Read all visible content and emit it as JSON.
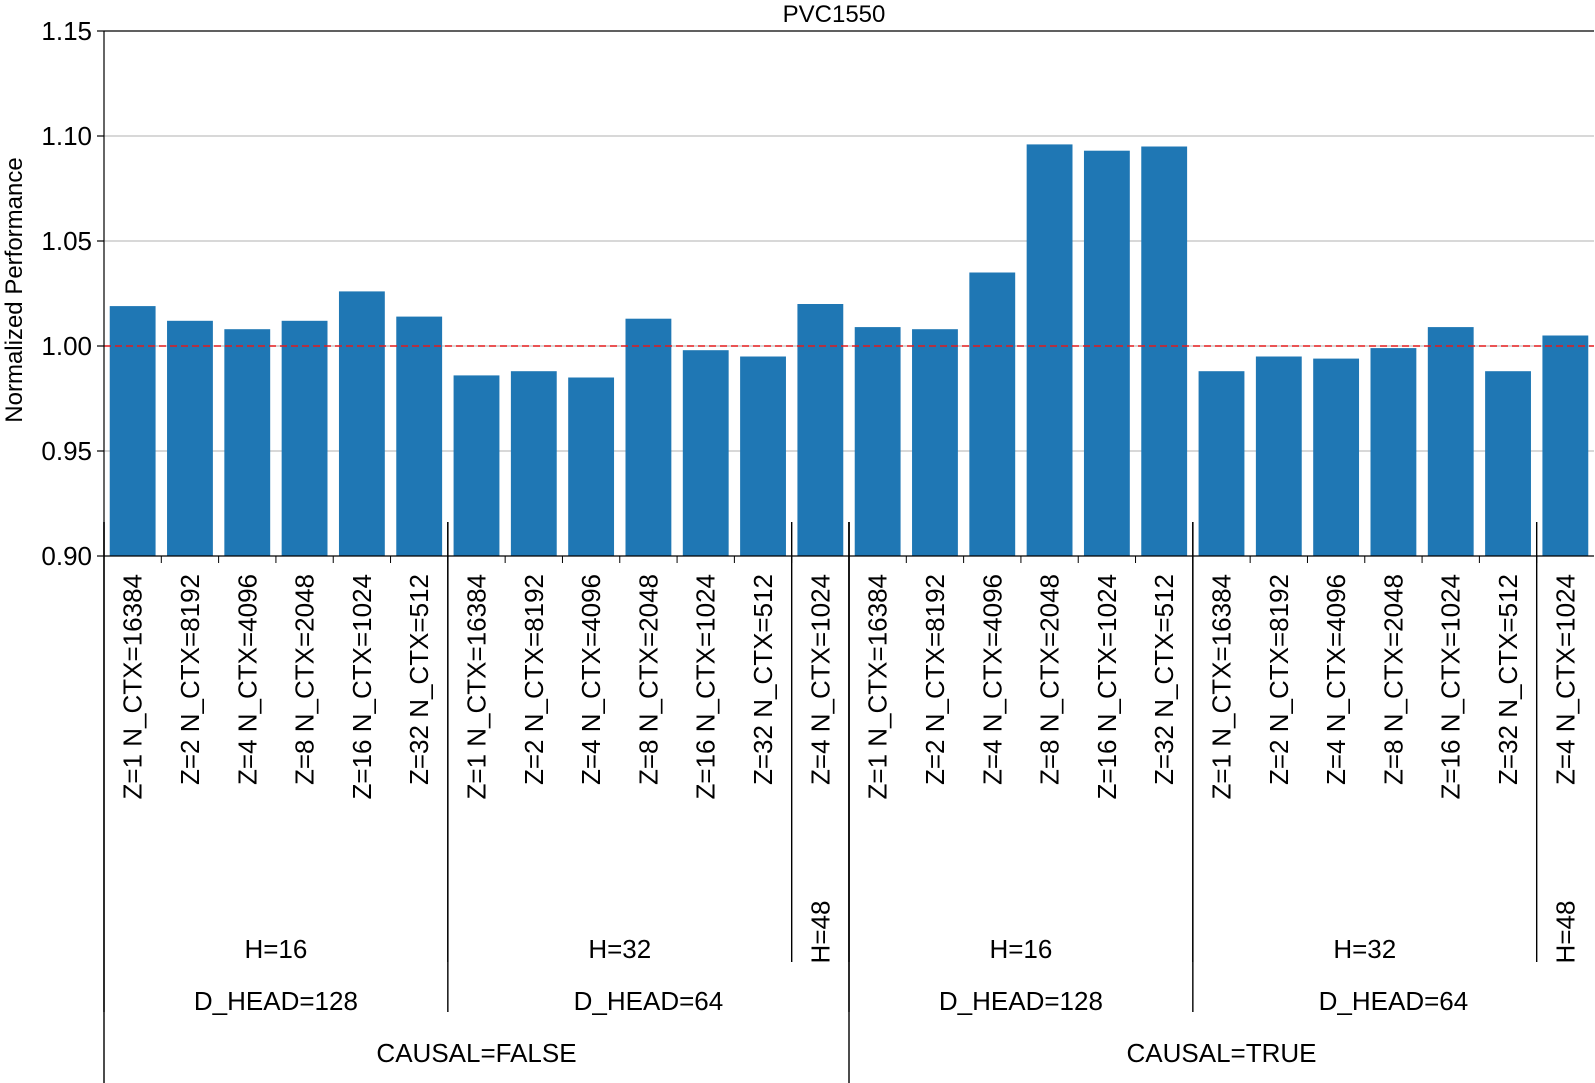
{
  "chart_data": {
    "type": "bar",
    "title": "PVC1550",
    "ylabel": "Normalized Performance",
    "xlabel": "",
    "ylim": [
      0.9,
      1.15
    ],
    "yticks": [
      "0.90",
      "0.95",
      "1.00",
      "1.05",
      "1.10",
      "1.15"
    ],
    "grid": "horizontal",
    "reference_line": {
      "value": 1.0,
      "color": "#e31a1c",
      "style": "dashed"
    },
    "bar_color": "#1f77b4",
    "categories": [
      "Z=1  N_CTX=16384",
      "Z=2  N_CTX=8192",
      "Z=4  N_CTX=4096",
      "Z=8  N_CTX=2048",
      "Z=16  N_CTX=1024",
      "Z=32  N_CTX=512",
      "Z=1  N_CTX=16384",
      "Z=2  N_CTX=8192",
      "Z=4  N_CTX=4096",
      "Z=8  N_CTX=2048",
      "Z=16  N_CTX=1024",
      "Z=32  N_CTX=512",
      "Z=4  N_CTX=1024",
      "Z=1  N_CTX=16384",
      "Z=2  N_CTX=8192",
      "Z=4  N_CTX=4096",
      "Z=8  N_CTX=2048",
      "Z=16  N_CTX=1024",
      "Z=32  N_CTX=512",
      "Z=1  N_CTX=16384",
      "Z=2  N_CTX=8192",
      "Z=4  N_CTX=4096",
      "Z=8  N_CTX=2048",
      "Z=16  N_CTX=1024",
      "Z=32  N_CTX=512",
      "Z=4  N_CTX=1024"
    ],
    "values": [
      1.019,
      1.012,
      1.008,
      1.012,
      1.026,
      1.014,
      0.986,
      0.988,
      0.985,
      1.013,
      0.998,
      0.995,
      1.02,
      1.009,
      1.008,
      1.035,
      1.096,
      1.093,
      1.095,
      0.988,
      0.995,
      0.994,
      0.999,
      1.009,
      0.988,
      1.005
    ],
    "groups": {
      "heads": [
        {
          "label": "H=16",
          "start": 0,
          "count": 6,
          "rotated": false
        },
        {
          "label": "H=32",
          "start": 6,
          "count": 6,
          "rotated": false
        },
        {
          "label": "H=48",
          "start": 12,
          "count": 1,
          "rotated": true
        },
        {
          "label": "H=16",
          "start": 13,
          "count": 6,
          "rotated": false
        },
        {
          "label": "H=32",
          "start": 19,
          "count": 6,
          "rotated": false
        },
        {
          "label": "H=48",
          "start": 25,
          "count": 1,
          "rotated": true
        }
      ],
      "d_head": [
        {
          "label": "D_HEAD=128",
          "start": 0,
          "count": 6
        },
        {
          "label": "D_HEAD=64",
          "start": 6,
          "count": 7
        },
        {
          "label": "D_HEAD=128",
          "start": 13,
          "count": 6
        },
        {
          "label": "D_HEAD=64",
          "start": 19,
          "count": 7
        }
      ],
      "causal": [
        {
          "label": "CAUSAL=FALSE",
          "start": 0,
          "count": 13
        },
        {
          "label": "CAUSAL=TRUE",
          "start": 13,
          "count": 13
        }
      ]
    }
  }
}
